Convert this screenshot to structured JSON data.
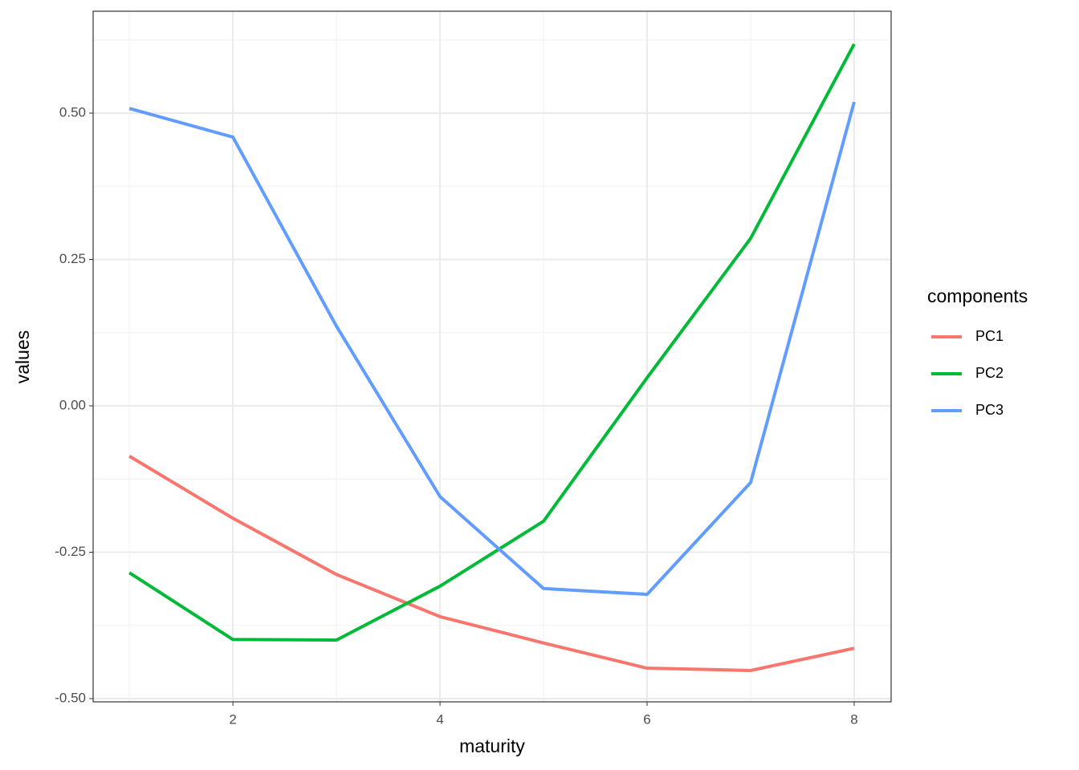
{
  "chart_data": {
    "type": "line",
    "x_label": "maturity",
    "y_label": "values",
    "legend_title": "components",
    "x": [
      1,
      2,
      3,
      4,
      5,
      6,
      7,
      8
    ],
    "series": [
      {
        "name": "PC1",
        "color": "#F8766D",
        "values": [
          -0.086,
          -0.192,
          -0.288,
          -0.36,
          -0.405,
          -0.448,
          -0.452,
          -0.414
        ]
      },
      {
        "name": "PC2",
        "color": "#00BA38",
        "values": [
          -0.285,
          -0.399,
          -0.4,
          -0.308,
          -0.197,
          0.048,
          0.286,
          0.618
        ]
      },
      {
        "name": "PC3",
        "color": "#619CFF",
        "values": [
          0.508,
          0.459,
          0.136,
          -0.155,
          -0.312,
          -0.322,
          -0.131,
          0.519
        ]
      }
    ],
    "xlim": [
      0.65,
      8.357
    ],
    "ylim": [
      -0.5055,
      0.674
    ],
    "xticks": [
      2,
      4,
      6,
      8
    ],
    "yticks": [
      {
        "value": -0.5,
        "label": "-0.50"
      },
      {
        "value": -0.25,
        "label": "-0.25"
      },
      {
        "value": 0,
        "label": "0.00"
      },
      {
        "value": 0.25,
        "label": "0.25"
      },
      {
        "value": 0.5,
        "label": "0.50"
      }
    ],
    "grid": true,
    "legend": "right"
  }
}
